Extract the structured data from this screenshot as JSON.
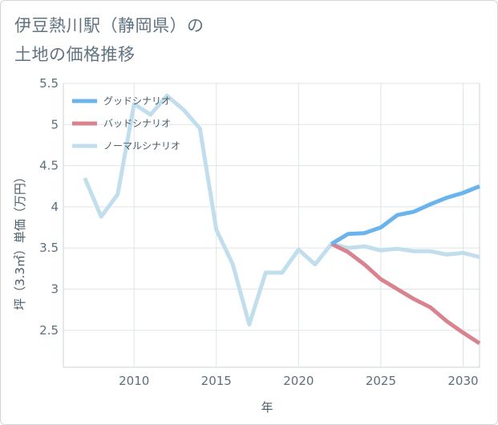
{
  "title_lines": [
    "伊豆熱川駅（静岡県）の",
    "土地の価格推移"
  ],
  "chart_data": {
    "type": "line",
    "title": "伊豆熱川駅（静岡県）の土地の価格推移",
    "xlabel": "年",
    "ylabel": "坪（3.3㎡）単価（万円）",
    "xlim": [
      2005.7,
      2031
    ],
    "ylim": [
      2.05,
      5.5
    ],
    "x_ticks": [
      2010,
      2015,
      2020,
      2025,
      2030
    ],
    "y_ticks": [
      2.5,
      3,
      3.5,
      4,
      4.5,
      5,
      5.5
    ],
    "y_tick_labels": [
      "2.5",
      "3",
      "3.5",
      "4",
      "4.5",
      "5",
      "5.5"
    ],
    "grid": true,
    "legend_position": "top-left",
    "series": [
      {
        "name": "グッドシナリオ",
        "color": "#6ab4ee",
        "x": [
          2022,
          2023,
          2024,
          2025,
          2026,
          2027,
          2028,
          2029,
          2030,
          2031
        ],
        "values": [
          3.55,
          3.67,
          3.68,
          3.75,
          3.9,
          3.94,
          4.03,
          4.11,
          4.17,
          4.25
        ]
      },
      {
        "name": "バッドシナリオ",
        "color": "#d9838f",
        "x": [
          2022,
          2023,
          2024,
          2025,
          2026,
          2027,
          2028,
          2029,
          2030,
          2031
        ],
        "values": [
          3.55,
          3.45,
          3.3,
          3.12,
          3.0,
          2.88,
          2.78,
          2.61,
          2.47,
          2.34
        ]
      },
      {
        "name": "ノーマルシナリオ",
        "color": "#c1deec",
        "x": [
          2007,
          2008,
          2009,
          2010,
          2011,
          2012,
          2013,
          2014,
          2015,
          2016,
          2017,
          2018,
          2019,
          2020,
          2021,
          2022,
          2023,
          2024,
          2025,
          2026,
          2027,
          2028,
          2029,
          2030,
          2031
        ],
        "values": [
          4.35,
          3.88,
          4.15,
          5.25,
          5.12,
          5.35,
          5.18,
          4.95,
          3.72,
          3.3,
          2.57,
          3.2,
          3.2,
          3.48,
          3.3,
          3.55,
          3.5,
          3.52,
          3.47,
          3.49,
          3.46,
          3.46,
          3.42,
          3.44,
          3.39
        ]
      }
    ]
  }
}
